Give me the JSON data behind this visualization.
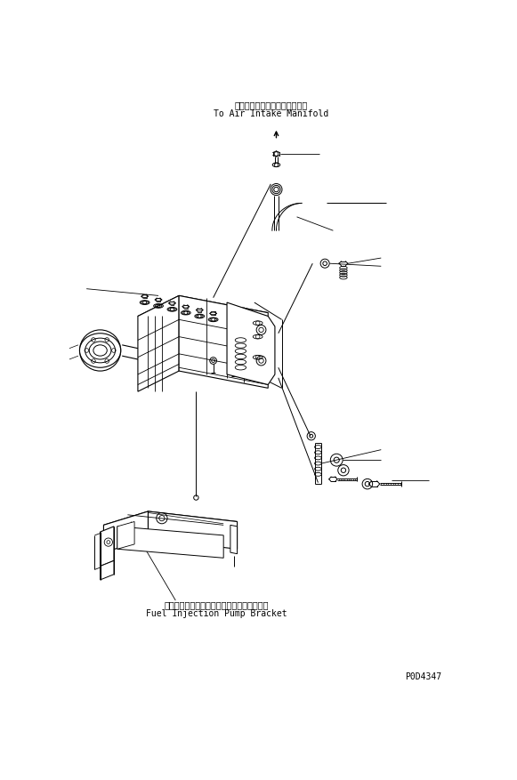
{
  "bg_color": "#ffffff",
  "lc": "#000000",
  "title_jp": "エアーインテークマニホルドへ",
  "title_en": "To Air Intake Manifold",
  "label_bracket_jp": "フィエルインジェクションポンプブラケット",
  "label_bracket_en": "Fuel Injection Pump Bracket",
  "part_number": "P0D4347",
  "fig_width": 5.81,
  "fig_height": 8.77,
  "dpi": 100
}
